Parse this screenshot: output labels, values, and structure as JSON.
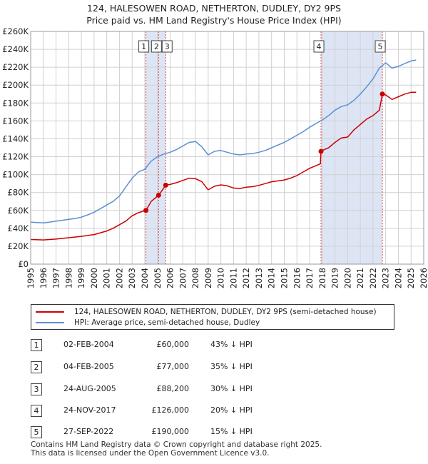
{
  "title_line1": "124, HALESOWEN ROAD, NETHERTON, DUDLEY, DY2 9PS",
  "title_line2": "Price paid vs. HM Land Registry's House Price Index (HPI)",
  "legend": {
    "property_label": "124, HALESOWEN ROAD, NETHERTON, DUDLEY, DY2 9PS (semi-detached house)",
    "hpi_label": "HPI: Average price, semi-detached house, Dudley"
  },
  "transactions": [
    {
      "num": "1",
      "date": "02-FEB-2004",
      "price": "£60,000",
      "diff": "43% ↓ HPI"
    },
    {
      "num": "2",
      "date": "04-FEB-2005",
      "price": "£77,000",
      "diff": "35% ↓ HPI"
    },
    {
      "num": "3",
      "date": "24-AUG-2005",
      "price": "£88,200",
      "diff": "30% ↓ HPI"
    },
    {
      "num": "4",
      "date": "24-NOV-2017",
      "price": "£126,000",
      "diff": "20% ↓ HPI"
    },
    {
      "num": "5",
      "date": "27-SEP-2022",
      "price": "£190,000",
      "diff": "15% ↓ HPI"
    }
  ],
  "footer_line1": "Contains HM Land Registry data © Crown copyright and database right 2025.",
  "footer_line2": "This data is licensed under the Open Government Licence v3.0.",
  "colors": {
    "property": "#cc0000",
    "hpi": "#5b8fd4",
    "shade": "#dde5f5",
    "grid": "#d0d0d0",
    "marker_line": "#dd4444"
  },
  "chart_data": {
    "type": "line",
    "xlim": [
      1995,
      2026
    ],
    "ylim": [
      0,
      260000
    ],
    "x_ticks": [
      "1995",
      "1996",
      "1997",
      "1998",
      "1999",
      "2000",
      "2001",
      "2002",
      "2003",
      "2004",
      "2005",
      "2006",
      "2007",
      "2008",
      "2009",
      "2010",
      "2011",
      "2012",
      "2013",
      "2014",
      "2015",
      "2016",
      "2017",
      "2018",
      "2019",
      "2020",
      "2021",
      "2022",
      "2023",
      "2024",
      "2025",
      "2026"
    ],
    "y_ticks": [
      {
        "value": 0,
        "label": "£0"
      },
      {
        "value": 20000,
        "label": "£20K"
      },
      {
        "value": 40000,
        "label": "£40K"
      },
      {
        "value": 60000,
        "label": "£60K"
      },
      {
        "value": 80000,
        "label": "£80K"
      },
      {
        "value": 100000,
        "label": "£100K"
      },
      {
        "value": 120000,
        "label": "£120K"
      },
      {
        "value": 140000,
        "label": "£140K"
      },
      {
        "value": 160000,
        "label": "£160K"
      },
      {
        "value": 180000,
        "label": "£180K"
      },
      {
        "value": 200000,
        "label": "£200K"
      },
      {
        "value": 220000,
        "label": "£220K"
      },
      {
        "value": 240000,
        "label": "£240K"
      },
      {
        "value": 260000,
        "label": "£260K"
      }
    ],
    "sales": [
      {
        "num": "1",
        "x": 2004.09,
        "y": 60000
      },
      {
        "num": "2",
        "x": 2005.09,
        "y": 77000
      },
      {
        "num": "3",
        "x": 2005.65,
        "y": 88200
      },
      {
        "num": "4",
        "x": 2017.9,
        "y": 126000
      },
      {
        "num": "5",
        "x": 2022.74,
        "y": 190000
      }
    ],
    "shaded_ranges": [
      [
        2004.09,
        2005.65
      ],
      [
        2017.9,
        2022.74
      ]
    ],
    "series": [
      {
        "name": "124, HALESOWEN ROAD, NETHERTON, DUDLEY, DY2 9PS (semi-detached house)",
        "x": [
          1995.0,
          1996.0,
          1997.0,
          1998.0,
          1999.0,
          2000.0,
          2001.0,
          2001.5,
          2002.0,
          2002.5,
          2003.0,
          2003.5,
          2004.09,
          2004.09,
          2004.5,
          2005.09,
          2005.09,
          2005.3,
          2005.65,
          2005.65,
          2006.0,
          2006.5,
          2007.0,
          2007.5,
          2008.0,
          2008.5,
          2009.0,
          2009.5,
          2010.0,
          2010.5,
          2011.0,
          2011.5,
          2012.0,
          2012.5,
          2013.0,
          2013.5,
          2014.0,
          2014.5,
          2015.0,
          2015.5,
          2016.0,
          2016.5,
          2017.0,
          2017.5,
          2017.85,
          2017.9,
          2018.0,
          2018.5,
          2019.0,
          2019.5,
          2020.0,
          2020.5,
          2021.0,
          2021.5,
          2022.0,
          2022.5,
          2022.74,
          2022.74,
          2023.0,
          2023.5,
          2024.0,
          2024.5,
          2025.0,
          2025.4
        ],
        "values": [
          27500,
          27000,
          28000,
          29500,
          31000,
          33000,
          37000,
          40000,
          44000,
          48000,
          54000,
          57500,
          60000,
          60000,
          70000,
          77000,
          77000,
          81000,
          88200,
          88200,
          89000,
          91000,
          93500,
          96000,
          95500,
          92000,
          83000,
          87000,
          88500,
          87500,
          85000,
          84500,
          86000,
          86500,
          88000,
          90000,
          92000,
          93000,
          94000,
          96000,
          99000,
          103000,
          107000,
          110000,
          112000,
          126000,
          127000,
          130000,
          136000,
          141000,
          142000,
          150000,
          156000,
          162000,
          166000,
          172000,
          190000,
          190000,
          189000,
          184000,
          187000,
          190000,
          192000,
          192000
        ]
      },
      {
        "name": "HPI: Average price, semi-detached house, Dudley",
        "x": [
          1995.0,
          1995.5,
          1996.0,
          1996.5,
          1997.0,
          1997.5,
          1998.0,
          1998.5,
          1999.0,
          1999.5,
          2000.0,
          2000.5,
          2001.0,
          2001.5,
          2002.0,
          2002.5,
          2003.0,
          2003.5,
          2004.0,
          2004.5,
          2005.0,
          2005.5,
          2006.0,
          2006.5,
          2007.0,
          2007.5,
          2008.0,
          2008.5,
          2009.0,
          2009.5,
          2010.0,
          2010.5,
          2011.0,
          2011.5,
          2012.0,
          2012.5,
          2013.0,
          2013.5,
          2014.0,
          2014.5,
          2015.0,
          2015.5,
          2016.0,
          2016.5,
          2017.0,
          2017.5,
          2018.0,
          2018.5,
          2019.0,
          2019.5,
          2020.0,
          2020.5,
          2021.0,
          2021.5,
          2022.0,
          2022.5,
          2023.0,
          2023.5,
          2024.0,
          2024.5,
          2025.0,
          2025.4
        ],
        "values": [
          47000,
          46500,
          46000,
          47000,
          48000,
          49000,
          50000,
          51000,
          52500,
          55000,
          58000,
          62000,
          66000,
          70000,
          76000,
          86000,
          96000,
          103000,
          106000,
          115000,
          120000,
          123000,
          125000,
          128000,
          132000,
          136000,
          137000,
          131000,
          122000,
          126000,
          127000,
          125000,
          123000,
          122000,
          123000,
          123500,
          125000,
          127000,
          130000,
          133000,
          136000,
          140000,
          144000,
          148000,
          153000,
          157000,
          161000,
          166000,
          172000,
          176000,
          178000,
          183000,
          190000,
          198000,
          207000,
          219000,
          225000,
          219000,
          221000,
          224000,
          227000,
          228000
        ]
      }
    ]
  }
}
